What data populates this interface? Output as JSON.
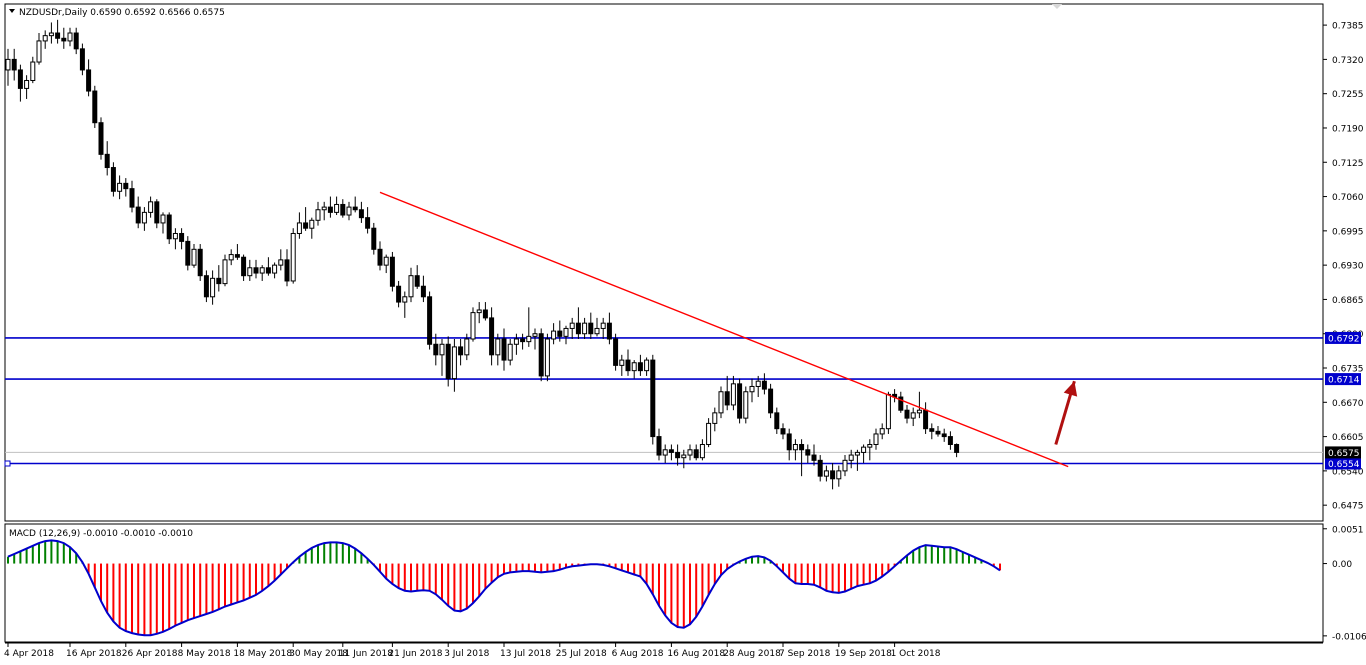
{
  "chart_data": [
    {
      "type": "candlestick",
      "title": "NZDUSDr,Daily",
      "ohlc_label": "0.6590 0.6592 0.6566 0.6575",
      "y_ticks": [
        "0.7385",
        "0.7320",
        "0.7255",
        "0.7190",
        "0.7125",
        "0.7060",
        "0.6995",
        "0.6930",
        "0.6865",
        "0.6800",
        "0.6735",
        "0.6670",
        "0.6605",
        "0.6540",
        "0.6475"
      ],
      "ylim": [
        0.6445,
        0.7425
      ],
      "x_ticks": [
        "4 Apr 2018",
        "16 Apr 2018",
        "26 Apr 2018",
        "8 May 2018",
        "18 May 2018",
        "30 May 2018",
        "11 Jun 2018",
        "21 Jun 2018",
        "3 Jul 2018",
        "13 Jul 2018",
        "25 Jul 2018",
        "6 Aug 2018",
        "16 Aug 2018",
        "28 Aug 2018",
        "7 Sep 2018",
        "19 Sep 2018",
        "1 Oct 2018"
      ],
      "horizontal_levels": [
        {
          "value": 0.6792,
          "label": "0.6792",
          "color": "#0000cc"
        },
        {
          "value": 0.6714,
          "label": "0.6714",
          "color": "#0000cc"
        },
        {
          "value": 0.6554,
          "label": "0.6554",
          "color": "#0000cc"
        }
      ],
      "current_price": {
        "value": 0.6575,
        "label": "0.6575"
      },
      "trendline": {
        "start": {
          "index": 60,
          "price": 0.7068
        },
        "end": {
          "index": 171,
          "price": 0.6548
        },
        "color": "#ff0000"
      },
      "arrow": {
        "start": {
          "index": 169,
          "price": 0.659
        },
        "end": {
          "index": 172,
          "price": 0.671
        },
        "color": "#b01010"
      },
      "candles": [
        [
          0.73,
          0.734,
          0.727,
          0.732
        ],
        [
          0.732,
          0.734,
          0.728,
          0.73
        ],
        [
          0.73,
          0.731,
          0.724,
          0.7265
        ],
        [
          0.7265,
          0.729,
          0.7245,
          0.728
        ],
        [
          0.728,
          0.7325,
          0.7275,
          0.7315
        ],
        [
          0.7315,
          0.737,
          0.731,
          0.7355
        ],
        [
          0.7355,
          0.7375,
          0.734,
          0.7365
        ],
        [
          0.7365,
          0.739,
          0.735,
          0.737
        ],
        [
          0.737,
          0.7395,
          0.735,
          0.736
        ],
        [
          0.736,
          0.738,
          0.734,
          0.7355
        ],
        [
          0.7355,
          0.738,
          0.7345,
          0.737
        ],
        [
          0.737,
          0.738,
          0.733,
          0.734
        ],
        [
          0.734,
          0.735,
          0.729,
          0.73
        ],
        [
          0.73,
          0.732,
          0.725,
          0.726
        ],
        [
          0.726,
          0.727,
          0.719,
          0.72
        ],
        [
          0.72,
          0.721,
          0.713,
          0.714
        ],
        [
          0.714,
          0.7165,
          0.71,
          0.7115
        ],
        [
          0.7115,
          0.7125,
          0.706,
          0.707
        ],
        [
          0.707,
          0.71,
          0.7055,
          0.7085
        ],
        [
          0.7085,
          0.7095,
          0.706,
          0.7075
        ],
        [
          0.7075,
          0.709,
          0.703,
          0.704
        ],
        [
          0.704,
          0.706,
          0.7,
          0.701
        ],
        [
          0.701,
          0.704,
          0.6995,
          0.703
        ],
        [
          0.703,
          0.706,
          0.702,
          0.705
        ],
        [
          0.705,
          0.7055,
          0.7,
          0.701
        ],
        [
          0.701,
          0.703,
          0.699,
          0.7025
        ],
        [
          0.7025,
          0.703,
          0.697,
          0.698
        ],
        [
          0.698,
          0.7,
          0.696,
          0.699
        ],
        [
          0.699,
          0.7,
          0.696,
          0.6975
        ],
        [
          0.6975,
          0.6985,
          0.692,
          0.693
        ],
        [
          0.693,
          0.697,
          0.6925,
          0.696
        ],
        [
          0.696,
          0.697,
          0.69,
          0.691
        ],
        [
          0.691,
          0.692,
          0.686,
          0.687
        ],
        [
          0.687,
          0.692,
          0.6855,
          0.6905
        ],
        [
          0.6905,
          0.693,
          0.688,
          0.6895
        ],
        [
          0.6895,
          0.695,
          0.689,
          0.694
        ],
        [
          0.694,
          0.696,
          0.693,
          0.695
        ],
        [
          0.695,
          0.697,
          0.694,
          0.6945
        ],
        [
          0.6945,
          0.695,
          0.69,
          0.691
        ],
        [
          0.691,
          0.694,
          0.69,
          0.6925
        ],
        [
          0.6925,
          0.694,
          0.6905,
          0.6915
        ],
        [
          0.6915,
          0.693,
          0.69,
          0.6925
        ],
        [
          0.6925,
          0.6945,
          0.691,
          0.6915
        ],
        [
          0.6915,
          0.6935,
          0.6905,
          0.693
        ],
        [
          0.693,
          0.696,
          0.692,
          0.694
        ],
        [
          0.694,
          0.696,
          0.689,
          0.69
        ],
        [
          0.69,
          0.7,
          0.6895,
          0.699
        ],
        [
          0.699,
          0.703,
          0.698,
          0.701
        ],
        [
          0.701,
          0.704,
          0.6995,
          0.7
        ],
        [
          0.7,
          0.702,
          0.698,
          0.7015
        ],
        [
          0.7015,
          0.705,
          0.7005,
          0.7035
        ],
        [
          0.7035,
          0.705,
          0.7015,
          0.704
        ],
        [
          0.704,
          0.706,
          0.702,
          0.703
        ],
        [
          0.703,
          0.706,
          0.7025,
          0.7045
        ],
        [
          0.7045,
          0.7055,
          0.702,
          0.7025
        ],
        [
          0.7025,
          0.705,
          0.7015,
          0.704
        ],
        [
          0.704,
          0.706,
          0.703,
          0.7035
        ],
        [
          0.7035,
          0.705,
          0.701,
          0.702
        ],
        [
          0.702,
          0.704,
          0.699,
          0.7
        ],
        [
          0.7,
          0.701,
          0.695,
          0.696
        ],
        [
          0.696,
          0.6975,
          0.692,
          0.693
        ],
        [
          0.693,
          0.695,
          0.6915,
          0.6945
        ],
        [
          0.6945,
          0.6955,
          0.688,
          0.689
        ],
        [
          0.689,
          0.69,
          0.685,
          0.686
        ],
        [
          0.686,
          0.688,
          0.683,
          0.687
        ],
        [
          0.687,
          0.6925,
          0.686,
          0.691
        ],
        [
          0.691,
          0.693,
          0.6885,
          0.689
        ],
        [
          0.689,
          0.691,
          0.686,
          0.687
        ],
        [
          0.687,
          0.688,
          0.677,
          0.678
        ],
        [
          0.678,
          0.68,
          0.674,
          0.676
        ],
        [
          0.676,
          0.679,
          0.672,
          0.678
        ],
        [
          0.678,
          0.6795,
          0.67,
          0.6715
        ],
        [
          0.6715,
          0.679,
          0.669,
          0.6775
        ],
        [
          0.6775,
          0.679,
          0.674,
          0.676
        ],
        [
          0.676,
          0.68,
          0.675,
          0.679
        ],
        [
          0.679,
          0.685,
          0.6785,
          0.684
        ],
        [
          0.684,
          0.686,
          0.682,
          0.6845
        ],
        [
          0.6845,
          0.686,
          0.6825,
          0.683
        ],
        [
          0.683,
          0.685,
          0.674,
          0.676
        ],
        [
          0.676,
          0.68,
          0.674,
          0.679
        ],
        [
          0.679,
          0.681,
          0.673,
          0.675
        ],
        [
          0.675,
          0.679,
          0.674,
          0.678
        ],
        [
          0.678,
          0.68,
          0.676,
          0.679
        ],
        [
          0.679,
          0.68,
          0.677,
          0.6785
        ],
        [
          0.6785,
          0.685,
          0.6775,
          0.6795
        ],
        [
          0.6795,
          0.681,
          0.677,
          0.68
        ],
        [
          0.68,
          0.681,
          0.671,
          0.672
        ],
        [
          0.672,
          0.68,
          0.671,
          0.679
        ],
        [
          0.679,
          0.682,
          0.678,
          0.6805
        ],
        [
          0.6805,
          0.6825,
          0.6785,
          0.6795
        ],
        [
          0.6795,
          0.6815,
          0.678,
          0.681
        ],
        [
          0.681,
          0.683,
          0.679,
          0.682
        ],
        [
          0.682,
          0.685,
          0.679,
          0.68
        ],
        [
          0.68,
          0.683,
          0.679,
          0.682
        ],
        [
          0.682,
          0.684,
          0.679,
          0.68
        ],
        [
          0.68,
          0.683,
          0.6795,
          0.681
        ],
        [
          0.681,
          0.683,
          0.679,
          0.682
        ],
        [
          0.682,
          0.684,
          0.678,
          0.679
        ],
        [
          0.679,
          0.68,
          0.673,
          0.674
        ],
        [
          0.674,
          0.676,
          0.672,
          0.675
        ],
        [
          0.675,
          0.677,
          0.672,
          0.673
        ],
        [
          0.673,
          0.675,
          0.6715,
          0.6745
        ],
        [
          0.6745,
          0.676,
          0.672,
          0.673
        ],
        [
          0.673,
          0.6755,
          0.672,
          0.675
        ],
        [
          0.675,
          0.676,
          0.659,
          0.6605
        ],
        [
          0.6605,
          0.662,
          0.656,
          0.657
        ],
        [
          0.657,
          0.659,
          0.6555,
          0.658
        ],
        [
          0.658,
          0.659,
          0.656,
          0.6575
        ],
        [
          0.6575,
          0.659,
          0.655,
          0.6565
        ],
        [
          0.6565,
          0.658,
          0.6545,
          0.657
        ],
        [
          0.657,
          0.659,
          0.656,
          0.658
        ],
        [
          0.658,
          0.659,
          0.656,
          0.6565
        ],
        [
          0.6565,
          0.66,
          0.656,
          0.659
        ],
        [
          0.659,
          0.664,
          0.6585,
          0.663
        ],
        [
          0.663,
          0.666,
          0.6615,
          0.665
        ],
        [
          0.665,
          0.67,
          0.664,
          0.669
        ],
        [
          0.669,
          0.672,
          0.6655,
          0.6665
        ],
        [
          0.6665,
          0.672,
          0.6655,
          0.6705
        ],
        [
          0.6705,
          0.6715,
          0.663,
          0.664
        ],
        [
          0.664,
          0.67,
          0.663,
          0.669
        ],
        [
          0.669,
          0.6715,
          0.667,
          0.67
        ],
        [
          0.67,
          0.672,
          0.668,
          0.671
        ],
        [
          0.671,
          0.6725,
          0.6685,
          0.6695
        ],
        [
          0.6695,
          0.6705,
          0.664,
          0.665
        ],
        [
          0.665,
          0.666,
          0.661,
          0.662
        ],
        [
          0.662,
          0.663,
          0.66,
          0.661
        ],
        [
          0.661,
          0.662,
          0.656,
          0.658
        ],
        [
          0.658,
          0.66,
          0.656,
          0.659
        ],
        [
          0.659,
          0.66,
          0.653,
          0.658
        ],
        [
          0.658,
          0.659,
          0.6555,
          0.657
        ],
        [
          0.657,
          0.659,
          0.655,
          0.656
        ],
        [
          0.656,
          0.657,
          0.652,
          0.653
        ],
        [
          0.653,
          0.655,
          0.652,
          0.654
        ],
        [
          0.654,
          0.6555,
          0.6505,
          0.6525
        ],
        [
          0.6525,
          0.655,
          0.651,
          0.654
        ],
        [
          0.654,
          0.657,
          0.653,
          0.656
        ],
        [
          0.656,
          0.658,
          0.6545,
          0.657
        ],
        [
          0.657,
          0.658,
          0.654,
          0.6575
        ],
        [
          0.6575,
          0.659,
          0.6555,
          0.6585
        ],
        [
          0.6585,
          0.66,
          0.656,
          0.659
        ],
        [
          0.659,
          0.662,
          0.658,
          0.661
        ],
        [
          0.661,
          0.663,
          0.66,
          0.662
        ],
        [
          0.662,
          0.669,
          0.661,
          0.6685
        ],
        [
          0.6685,
          0.6695,
          0.667,
          0.668
        ],
        [
          0.668,
          0.669,
          0.665,
          0.6655
        ],
        [
          0.6655,
          0.6665,
          0.663,
          0.664
        ],
        [
          0.664,
          0.666,
          0.6625,
          0.665
        ],
        [
          0.665,
          0.669,
          0.664,
          0.6655
        ],
        [
          0.6655,
          0.667,
          0.661,
          0.662
        ],
        [
          0.662,
          0.663,
          0.66,
          0.6615
        ],
        [
          0.6615,
          0.6625,
          0.6605,
          0.661
        ],
        [
          0.661,
          0.662,
          0.6595,
          0.6605
        ],
        [
          0.6605,
          0.6615,
          0.658,
          0.659
        ],
        [
          0.659,
          0.6592,
          0.6566,
          0.6575
        ]
      ],
      "macd": {
        "label": "MACD (12,26,9) -0.0010 -0.0010 -0.0010",
        "y_ticks": [
          "0.0051",
          "0.00",
          "-0.0106"
        ],
        "ylim": [
          -0.0115,
          0.0058
        ],
        "histogram": [
          0.001,
          0.0014,
          0.0018,
          0.0022,
          0.0026,
          0.003,
          0.0033,
          0.0034,
          0.0033,
          0.003,
          0.0024,
          0.0015,
          0.0002,
          -0.0015,
          -0.0035,
          -0.0055,
          -0.0072,
          -0.0085,
          -0.0094,
          -0.0099,
          -0.0102,
          -0.0104,
          -0.0105,
          -0.0105,
          -0.0103,
          -0.01,
          -0.0096,
          -0.0091,
          -0.0087,
          -0.0083,
          -0.008,
          -0.0077,
          -0.0074,
          -0.0071,
          -0.0067,
          -0.0063,
          -0.006,
          -0.0057,
          -0.0054,
          -0.005,
          -0.0046,
          -0.004,
          -0.0033,
          -0.0025,
          -0.0016,
          -0.0007,
          0.0002,
          0.001,
          0.0017,
          0.0023,
          0.0027,
          0.003,
          0.0031,
          0.0031,
          0.003,
          0.0027,
          0.0022,
          0.0015,
          0.0007,
          -0.0002,
          -0.0012,
          -0.0022,
          -0.003,
          -0.0036,
          -0.004,
          -0.0041,
          -0.004,
          -0.0039,
          -0.004,
          -0.0045,
          -0.0053,
          -0.0062,
          -0.0069,
          -0.007,
          -0.0066,
          -0.0058,
          -0.0048,
          -0.0037,
          -0.0028,
          -0.002,
          -0.0015,
          -0.0013,
          -0.0012,
          -0.0011,
          -0.0011,
          -0.0012,
          -0.0013,
          -0.0012,
          -0.0011,
          -0.0009,
          -0.0006,
          -0.0004,
          -0.0003,
          -0.0002,
          -0.0001,
          -0.0001,
          -0.0002,
          -0.0004,
          -0.0007,
          -0.001,
          -0.0013,
          -0.0016,
          -0.0019,
          -0.003,
          -0.0045,
          -0.0062,
          -0.0076,
          -0.0087,
          -0.0093,
          -0.0094,
          -0.0089,
          -0.0078,
          -0.0063,
          -0.0046,
          -0.003,
          -0.0017,
          -0.0008,
          -0.0002,
          0.0003,
          0.0007,
          0.001,
          0.0011,
          0.0009,
          0.0004,
          -0.0004,
          -0.0013,
          -0.0022,
          -0.0029,
          -0.003,
          -0.003,
          -0.0031,
          -0.0035,
          -0.004,
          -0.0042,
          -0.0043,
          -0.0041,
          -0.0037,
          -0.0033,
          -0.0031,
          -0.0029,
          -0.0025,
          -0.0019,
          -0.0012,
          -0.0004,
          0.0004,
          0.0012,
          0.0019,
          0.0024,
          0.0027,
          0.0026,
          0.0025,
          0.0024,
          0.0024,
          0.0021,
          0.0017,
          0.0013,
          0.0009,
          0.0005,
          0.0001,
          -0.0004,
          -0.001
        ],
        "pos_color": "#008000",
        "neg_color": "#ff0000",
        "line_color": "#0000cc"
      }
    }
  ]
}
